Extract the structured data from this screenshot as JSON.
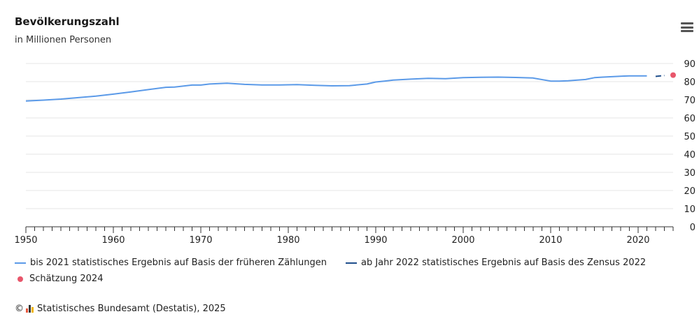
{
  "chart_data": {
    "type": "line",
    "title": "Bevölkerungszahl",
    "subtitle": "in Millionen Personen",
    "xlabel": "",
    "ylabel": "",
    "xlim": [
      1950,
      2024
    ],
    "ylim": [
      0,
      90
    ],
    "x_ticks": [
      "1950",
      "1960",
      "1970",
      "1980",
      "1990",
      "2000",
      "2010",
      "2020"
    ],
    "y_ticks": [
      "0",
      "10",
      "20",
      "30",
      "40",
      "50",
      "60",
      "70",
      "80",
      "90"
    ],
    "grid": true,
    "legend_position": "bottom",
    "series": [
      {
        "name": "bis 2021 statistisches Ergebnis auf Basis der früheren Zählungen",
        "style": "solid",
        "color": "#5b9ae8",
        "points": [
          [
            1950,
            69.3
          ],
          [
            1952,
            69.8
          ],
          [
            1954,
            70.4
          ],
          [
            1956,
            71.2
          ],
          [
            1958,
            72.0
          ],
          [
            1960,
            73.1
          ],
          [
            1962,
            74.3
          ],
          [
            1964,
            75.6
          ],
          [
            1966,
            76.9
          ],
          [
            1967,
            77.0
          ],
          [
            1969,
            78.1
          ],
          [
            1970,
            78.1
          ],
          [
            1971,
            78.7
          ],
          [
            1973,
            79.1
          ],
          [
            1975,
            78.5
          ],
          [
            1977,
            78.2
          ],
          [
            1979,
            78.2
          ],
          [
            1981,
            78.4
          ],
          [
            1983,
            78.0
          ],
          [
            1985,
            77.7
          ],
          [
            1987,
            77.8
          ],
          [
            1989,
            78.7
          ],
          [
            1990,
            79.8
          ],
          [
            1991,
            80.3
          ],
          [
            1992,
            80.9
          ],
          [
            1994,
            81.4
          ],
          [
            1996,
            81.8
          ],
          [
            1998,
            81.6
          ],
          [
            2000,
            82.2
          ],
          [
            2002,
            82.4
          ],
          [
            2004,
            82.5
          ],
          [
            2006,
            82.3
          ],
          [
            2008,
            82.0
          ],
          [
            2010,
            80.3
          ],
          [
            2011,
            80.3
          ],
          [
            2012,
            80.5
          ],
          [
            2014,
            81.2
          ],
          [
            2015,
            82.2
          ],
          [
            2016,
            82.5
          ],
          [
            2018,
            83.0
          ],
          [
            2019,
            83.2
          ],
          [
            2020,
            83.2
          ],
          [
            2021,
            83.2
          ]
        ]
      },
      {
        "name": "ab Jahr 2022 statistisches Ergebnis auf Basis des Zensus 2022",
        "style": "dashed",
        "color": "#1f4e8c",
        "points": [
          [
            2022,
            82.9
          ],
          [
            2023,
            83.4
          ]
        ]
      },
      {
        "name": "Schätzung 2024",
        "style": "point",
        "color": "#e8566b",
        "points": [
          [
            2024,
            83.6
          ]
        ]
      }
    ]
  },
  "menu_icon": "hamburger-menu-icon",
  "copyright": {
    "symbol": "©",
    "logo": "destatis-logo-icon",
    "text": "Statistisches Bundesamt (Destatis), 2025"
  }
}
